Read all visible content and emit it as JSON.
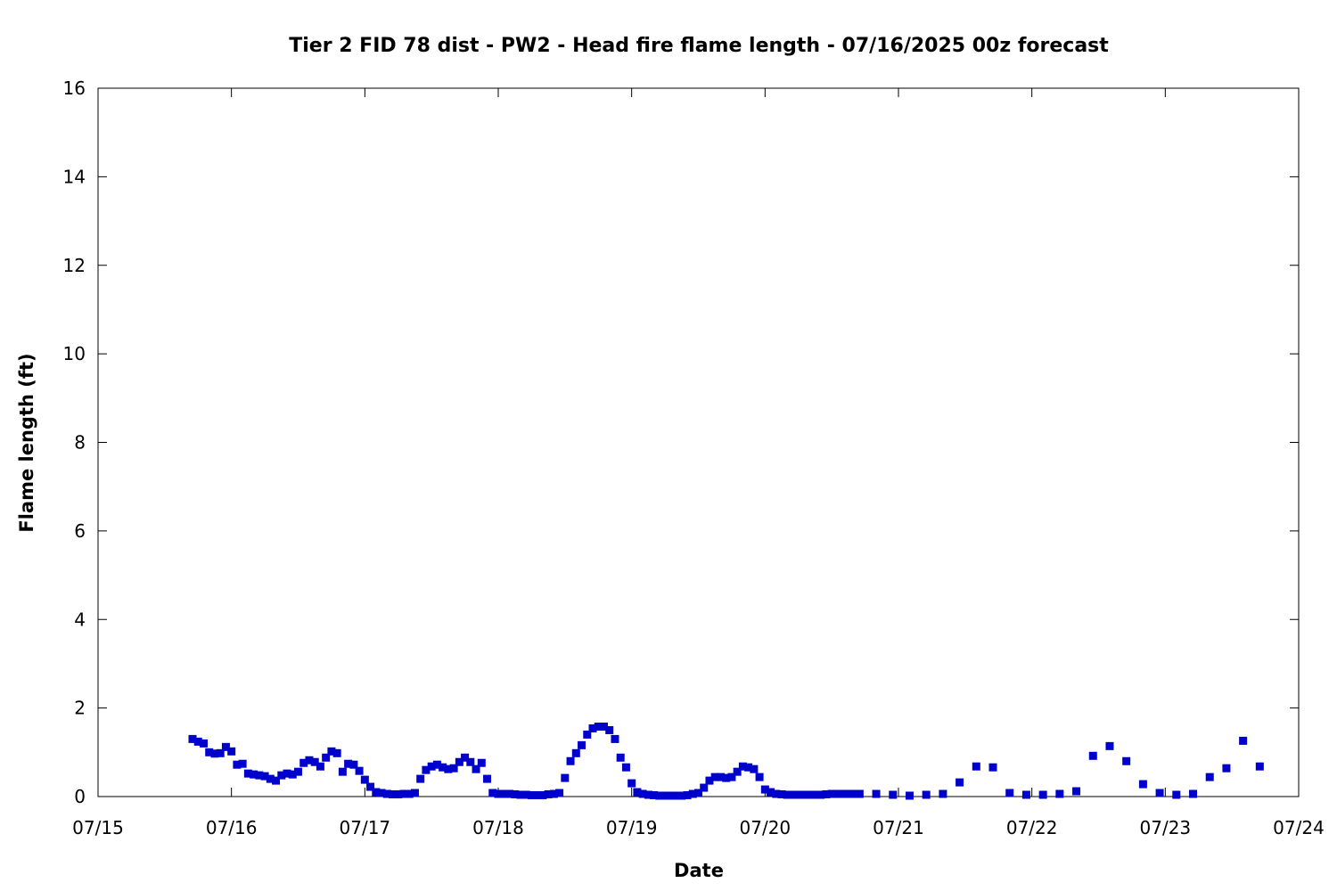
{
  "chart_data": {
    "type": "scatter",
    "title": "Tier 2 FID 78 dist - PW2 - Head fire flame length - 07/16/2025 00z forecast",
    "xlabel": "Date",
    "ylabel": "Flame length (ft)",
    "x_ticks": [
      "07/15",
      "07/16",
      "07/17",
      "07/18",
      "07/19",
      "07/20",
      "07/21",
      "07/22",
      "07/23",
      "07/24"
    ],
    "y_ticks": [
      "0",
      "2",
      "4",
      "6",
      "8",
      "10",
      "12",
      "14",
      "16"
    ],
    "xlim": [
      "07/15 00:00",
      "07/24 00:00"
    ],
    "ylim": [
      0,
      16
    ],
    "grid": false,
    "marker_color": "#0000cc",
    "x": [
      "07/15 17:00",
      "07/15 18:00",
      "07/15 19:00",
      "07/15 20:00",
      "07/15 21:00",
      "07/15 22:00",
      "07/15 23:00",
      "07/16 00:00",
      "07/16 01:00",
      "07/16 02:00",
      "07/16 03:00",
      "07/16 04:00",
      "07/16 05:00",
      "07/16 06:00",
      "07/16 07:00",
      "07/16 08:00",
      "07/16 09:00",
      "07/16 10:00",
      "07/16 11:00",
      "07/16 12:00",
      "07/16 13:00",
      "07/16 14:00",
      "07/16 15:00",
      "07/16 16:00",
      "07/16 17:00",
      "07/16 18:00",
      "07/16 19:00",
      "07/16 20:00",
      "07/16 21:00",
      "07/16 22:00",
      "07/16 23:00",
      "07/17 00:00",
      "07/17 01:00",
      "07/17 02:00",
      "07/17 03:00",
      "07/17 04:00",
      "07/17 05:00",
      "07/17 06:00",
      "07/17 07:00",
      "07/17 08:00",
      "07/17 09:00",
      "07/17 10:00",
      "07/17 11:00",
      "07/17 12:00",
      "07/17 13:00",
      "07/17 14:00",
      "07/17 15:00",
      "07/17 16:00",
      "07/17 17:00",
      "07/17 18:00",
      "07/17 19:00",
      "07/17 20:00",
      "07/17 21:00",
      "07/17 22:00",
      "07/17 23:00",
      "07/18 00:00",
      "07/18 01:00",
      "07/18 02:00",
      "07/18 03:00",
      "07/18 04:00",
      "07/18 05:00",
      "07/18 06:00",
      "07/18 07:00",
      "07/18 08:00",
      "07/18 09:00",
      "07/18 10:00",
      "07/18 11:00",
      "07/18 12:00",
      "07/18 13:00",
      "07/18 14:00",
      "07/18 15:00",
      "07/18 16:00",
      "07/18 17:00",
      "07/18 18:00",
      "07/18 19:00",
      "07/18 20:00",
      "07/18 21:00",
      "07/18 22:00",
      "07/18 23:00",
      "07/19 00:00",
      "07/19 01:00",
      "07/19 02:00",
      "07/19 03:00",
      "07/19 04:00",
      "07/19 05:00",
      "07/19 06:00",
      "07/19 07:00",
      "07/19 08:00",
      "07/19 09:00",
      "07/19 10:00",
      "07/19 11:00",
      "07/19 12:00",
      "07/19 13:00",
      "07/19 14:00",
      "07/19 15:00",
      "07/19 16:00",
      "07/19 17:00",
      "07/19 18:00",
      "07/19 19:00",
      "07/19 20:00",
      "07/19 21:00",
      "07/19 22:00",
      "07/19 23:00",
      "07/20 00:00",
      "07/20 01:00",
      "07/20 02:00",
      "07/20 03:00",
      "07/20 04:00",
      "07/20 05:00",
      "07/20 06:00",
      "07/20 07:00",
      "07/20 08:00",
      "07/20 09:00",
      "07/20 10:00",
      "07/20 11:00",
      "07/20 12:00",
      "07/20 13:00",
      "07/20 14:00",
      "07/20 15:00",
      "07/20 16:00",
      "07/20 17:00",
      "07/20 20:00",
      "07/20 23:00",
      "07/21 02:00",
      "07/21 05:00",
      "07/21 08:00",
      "07/21 11:00",
      "07/21 14:00",
      "07/21 17:00",
      "07/21 20:00",
      "07/21 23:00",
      "07/22 02:00",
      "07/22 05:00",
      "07/22 08:00",
      "07/22 11:00",
      "07/22 14:00",
      "07/22 17:00",
      "07/22 20:00",
      "07/22 23:00",
      "07/23 02:00",
      "07/23 05:00",
      "07/23 08:00",
      "07/23 11:00",
      "07/23 14:00",
      "07/23 17:00"
    ],
    "y": [
      1.3,
      1.24,
      1.2,
      1.0,
      0.97,
      0.98,
      1.12,
      1.02,
      0.72,
      0.74,
      0.52,
      0.5,
      0.48,
      0.46,
      0.4,
      0.36,
      0.48,
      0.52,
      0.5,
      0.56,
      0.76,
      0.82,
      0.78,
      0.68,
      0.88,
      1.02,
      0.98,
      0.56,
      0.74,
      0.72,
      0.58,
      0.38,
      0.22,
      0.1,
      0.08,
      0.06,
      0.05,
      0.05,
      0.06,
      0.06,
      0.08,
      0.4,
      0.6,
      0.68,
      0.72,
      0.66,
      0.62,
      0.64,
      0.78,
      0.88,
      0.78,
      0.62,
      0.76,
      0.4,
      0.08,
      0.06,
      0.06,
      0.06,
      0.05,
      0.04,
      0.04,
      0.03,
      0.03,
      0.03,
      0.05,
      0.06,
      0.08,
      0.42,
      0.8,
      0.98,
      1.16,
      1.4,
      1.54,
      1.58,
      1.58,
      1.5,
      1.3,
      0.88,
      0.66,
      0.3,
      0.1,
      0.06,
      0.04,
      0.03,
      0.02,
      0.02,
      0.02,
      0.02,
      0.02,
      0.03,
      0.06,
      0.08,
      0.2,
      0.36,
      0.44,
      0.44,
      0.42,
      0.44,
      0.56,
      0.68,
      0.66,
      0.62,
      0.44,
      0.16,
      0.1,
      0.06,
      0.05,
      0.04,
      0.04,
      0.04,
      0.04,
      0.04,
      0.04,
      0.04,
      0.05,
      0.06,
      0.06,
      0.06,
      0.06,
      0.06,
      0.06,
      0.06,
      0.04,
      0.02,
      0.04,
      0.06,
      0.32,
      0.68,
      0.66,
      0.08,
      0.04,
      0.04,
      0.06,
      0.12,
      0.92,
      1.14,
      0.8,
      0.28,
      0.08,
      0.04,
      0.06,
      0.44,
      0.64,
      1.26,
      0.68
    ]
  }
}
